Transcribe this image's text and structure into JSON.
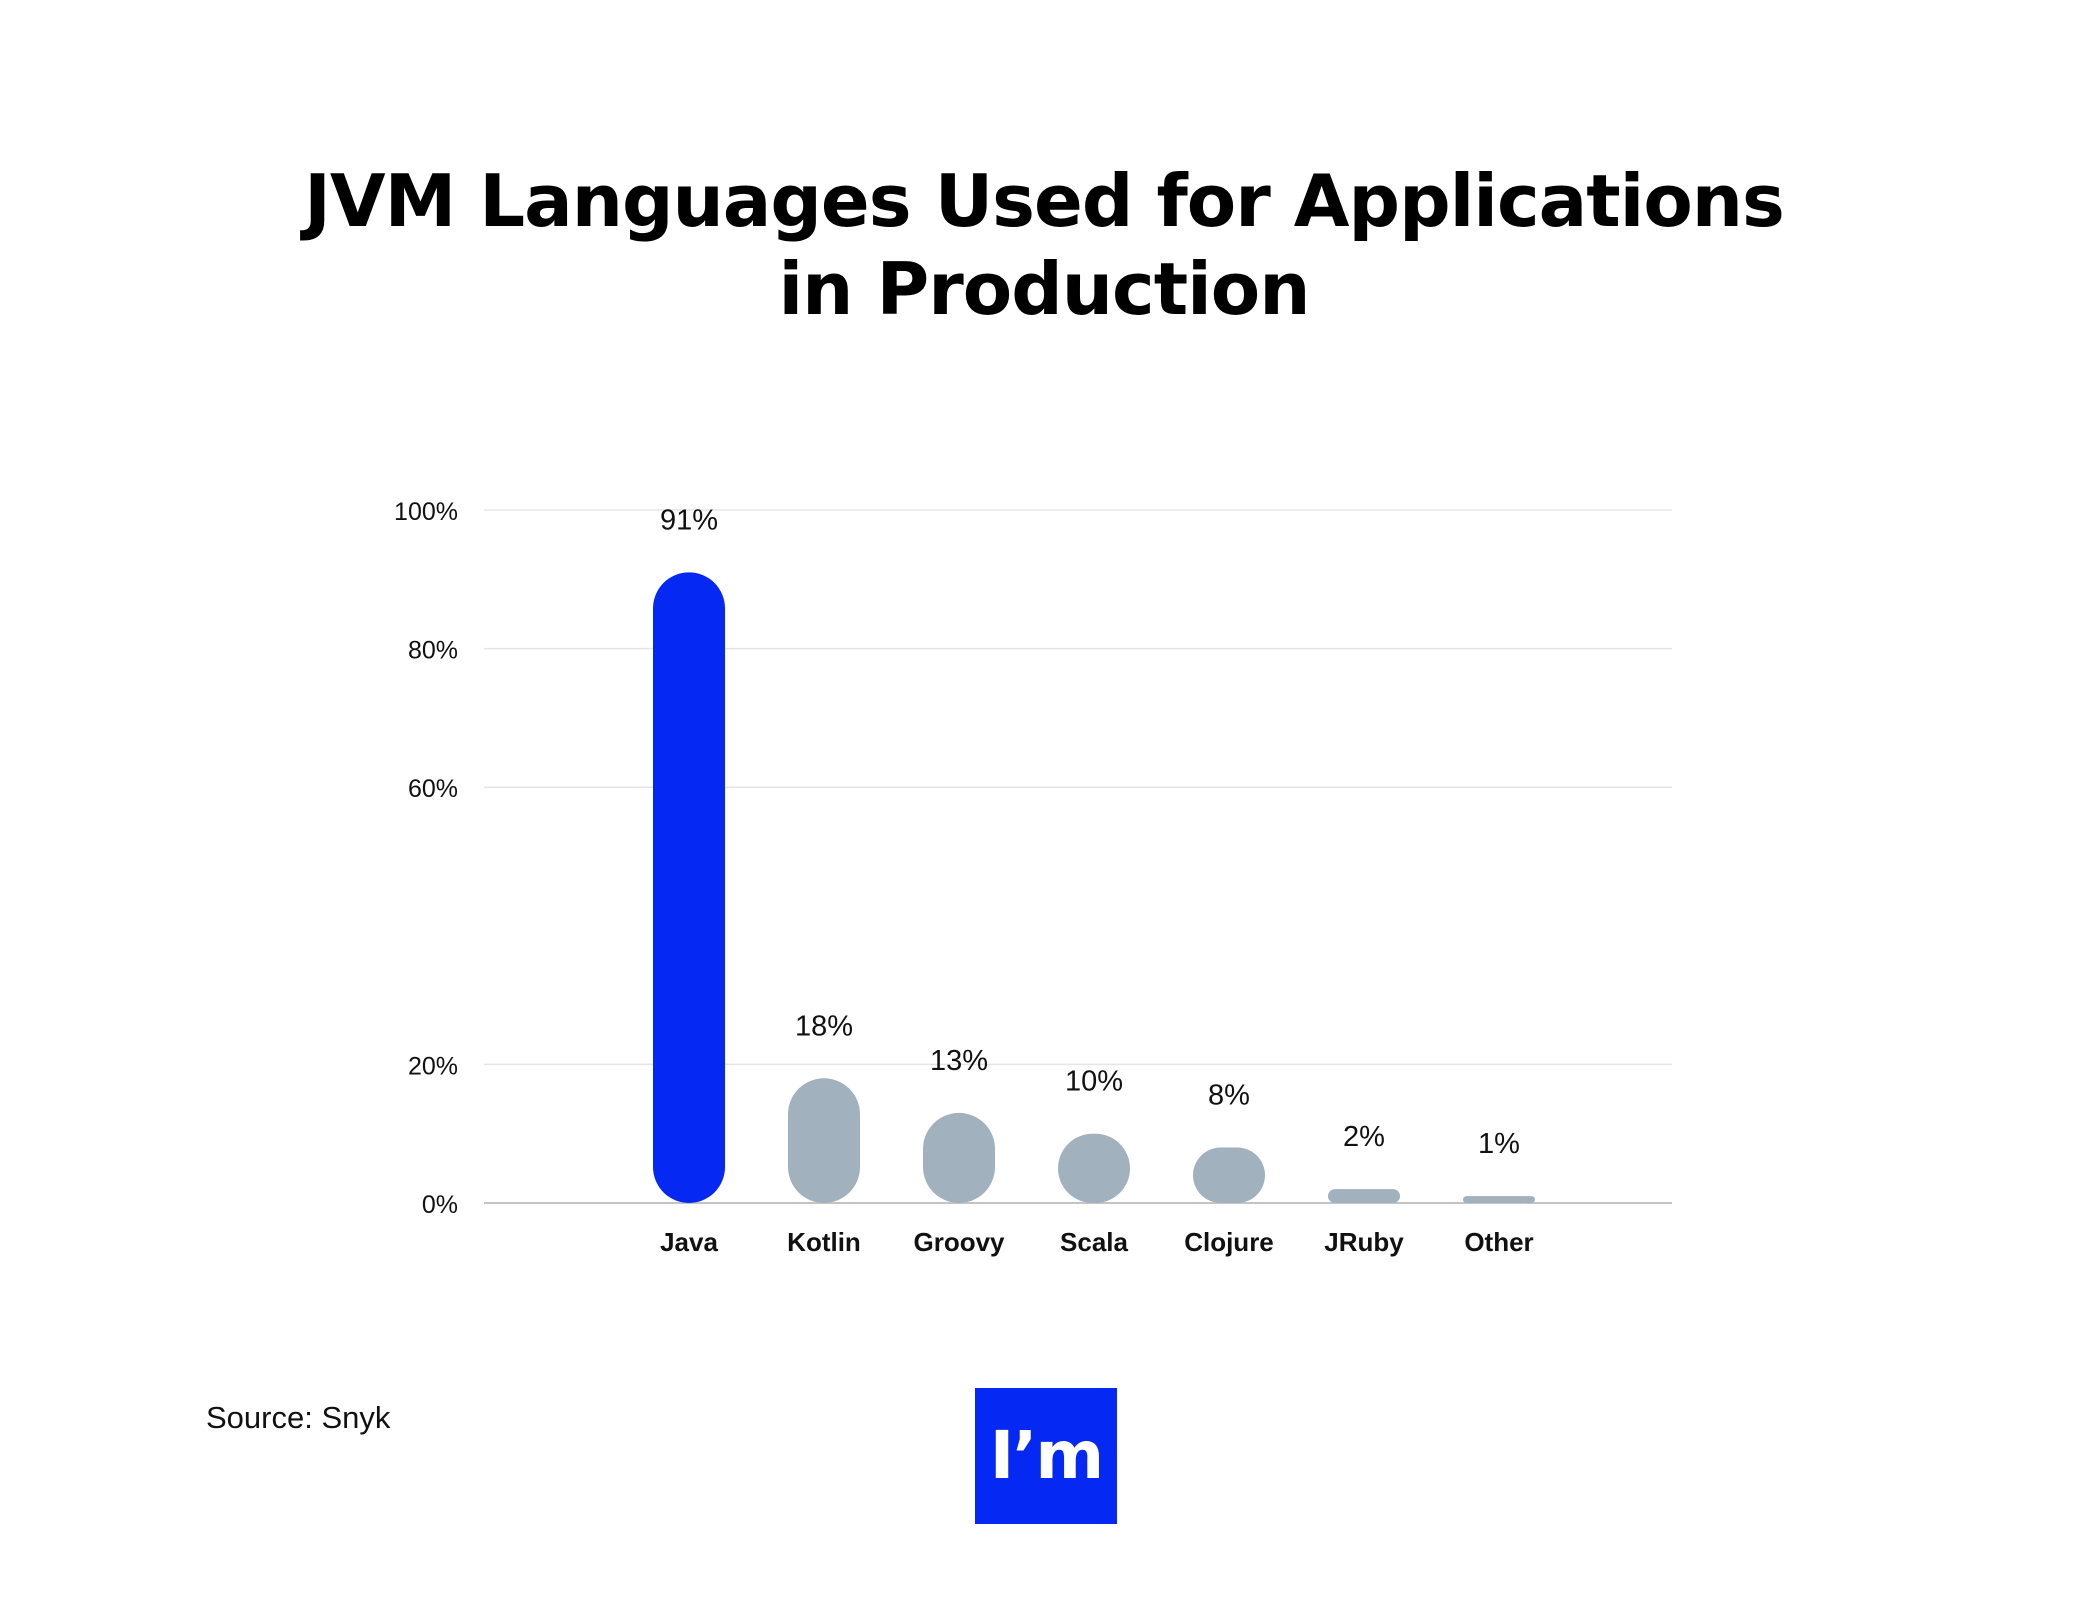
{
  "title_lines": [
    "JVM Languages Used for Applications",
    "in Production"
  ],
  "source": "Source: Snyk",
  "logo_text": "I’m",
  "chart_data": {
    "type": "bar",
    "title": "JVM Languages Used for Applications in Production",
    "categories": [
      "Java",
      "Kotlin",
      "Groovy",
      "Scala",
      "Clojure",
      "JRuby",
      "Other"
    ],
    "values": [
      91,
      18,
      13,
      10,
      8,
      2,
      1
    ],
    "data_labels": [
      "91%",
      "18%",
      "13%",
      "10%",
      "8%",
      "2%",
      "1%"
    ],
    "yticks": [
      0,
      20,
      60,
      80,
      100
    ],
    "ytick_labels": [
      "0%",
      "20%",
      "60%",
      "80%",
      "100%"
    ],
    "ylim": [
      0,
      100
    ],
    "grid": true,
    "colors": {
      "highlight": "#0528f2",
      "default": "#a1b1be",
      "grid": "#e5e5e5",
      "baseline": "#c4c4c4"
    },
    "highlight_index": 0
  }
}
